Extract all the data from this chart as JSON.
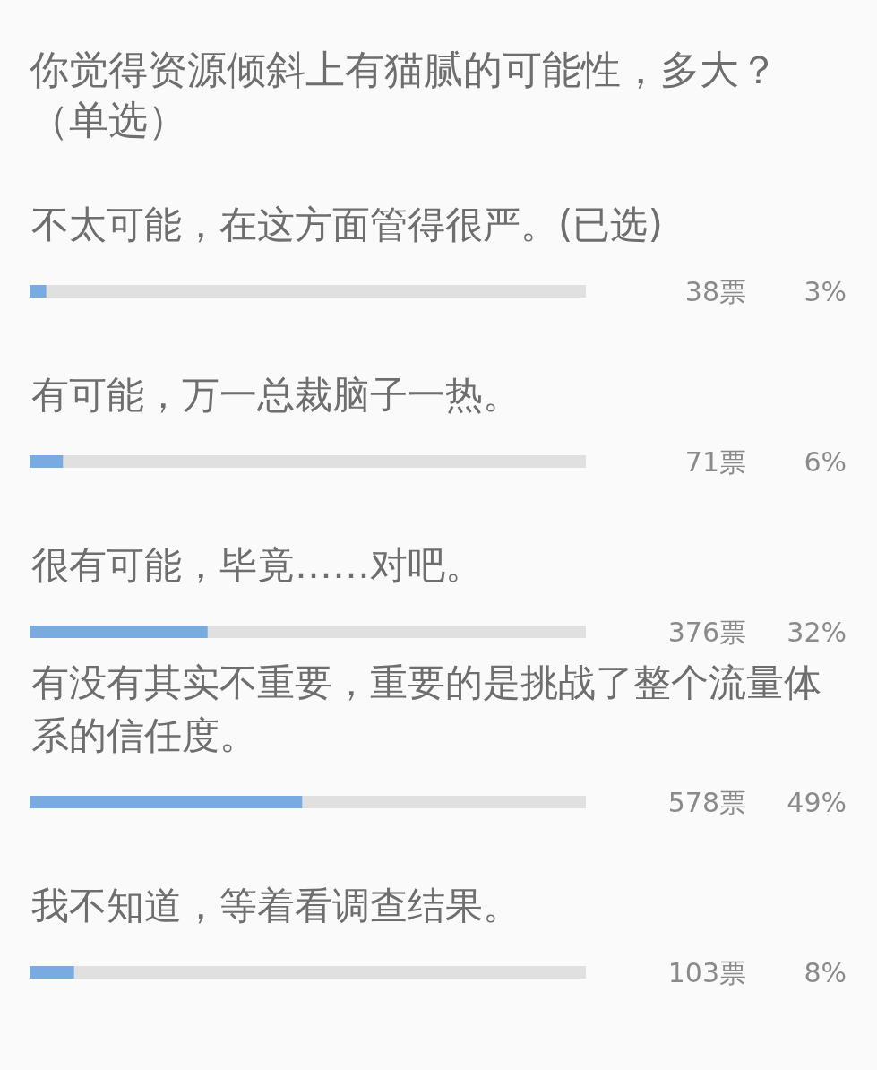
{
  "chart_data": {
    "type": "bar",
    "orientation": "horizontal",
    "title": "你觉得资源倾斜上有猫腻的可能性，多大？（单选）",
    "categories": [
      "不太可能，在这方面管得很严。(已选)",
      "有可能，万一总裁脑子一热。",
      "很有可能，毕竟……对吧。",
      "有没有其实不重要，重要的是挑战了整个流量体系的信任度。",
      "我不知道，等着看调查结果。"
    ],
    "values": [
      3,
      6,
      32,
      49,
      8
    ],
    "color": "#7aabe0",
    "xlim": [
      0,
      100
    ],
    "value_labels": [
      "3%",
      "6%",
      "32%",
      "49%",
      "8%"
    ],
    "annotations": [
      "38票",
      "71票",
      "376票",
      "578票",
      "103票"
    ],
    "tick_labels": "y"
  }
}
